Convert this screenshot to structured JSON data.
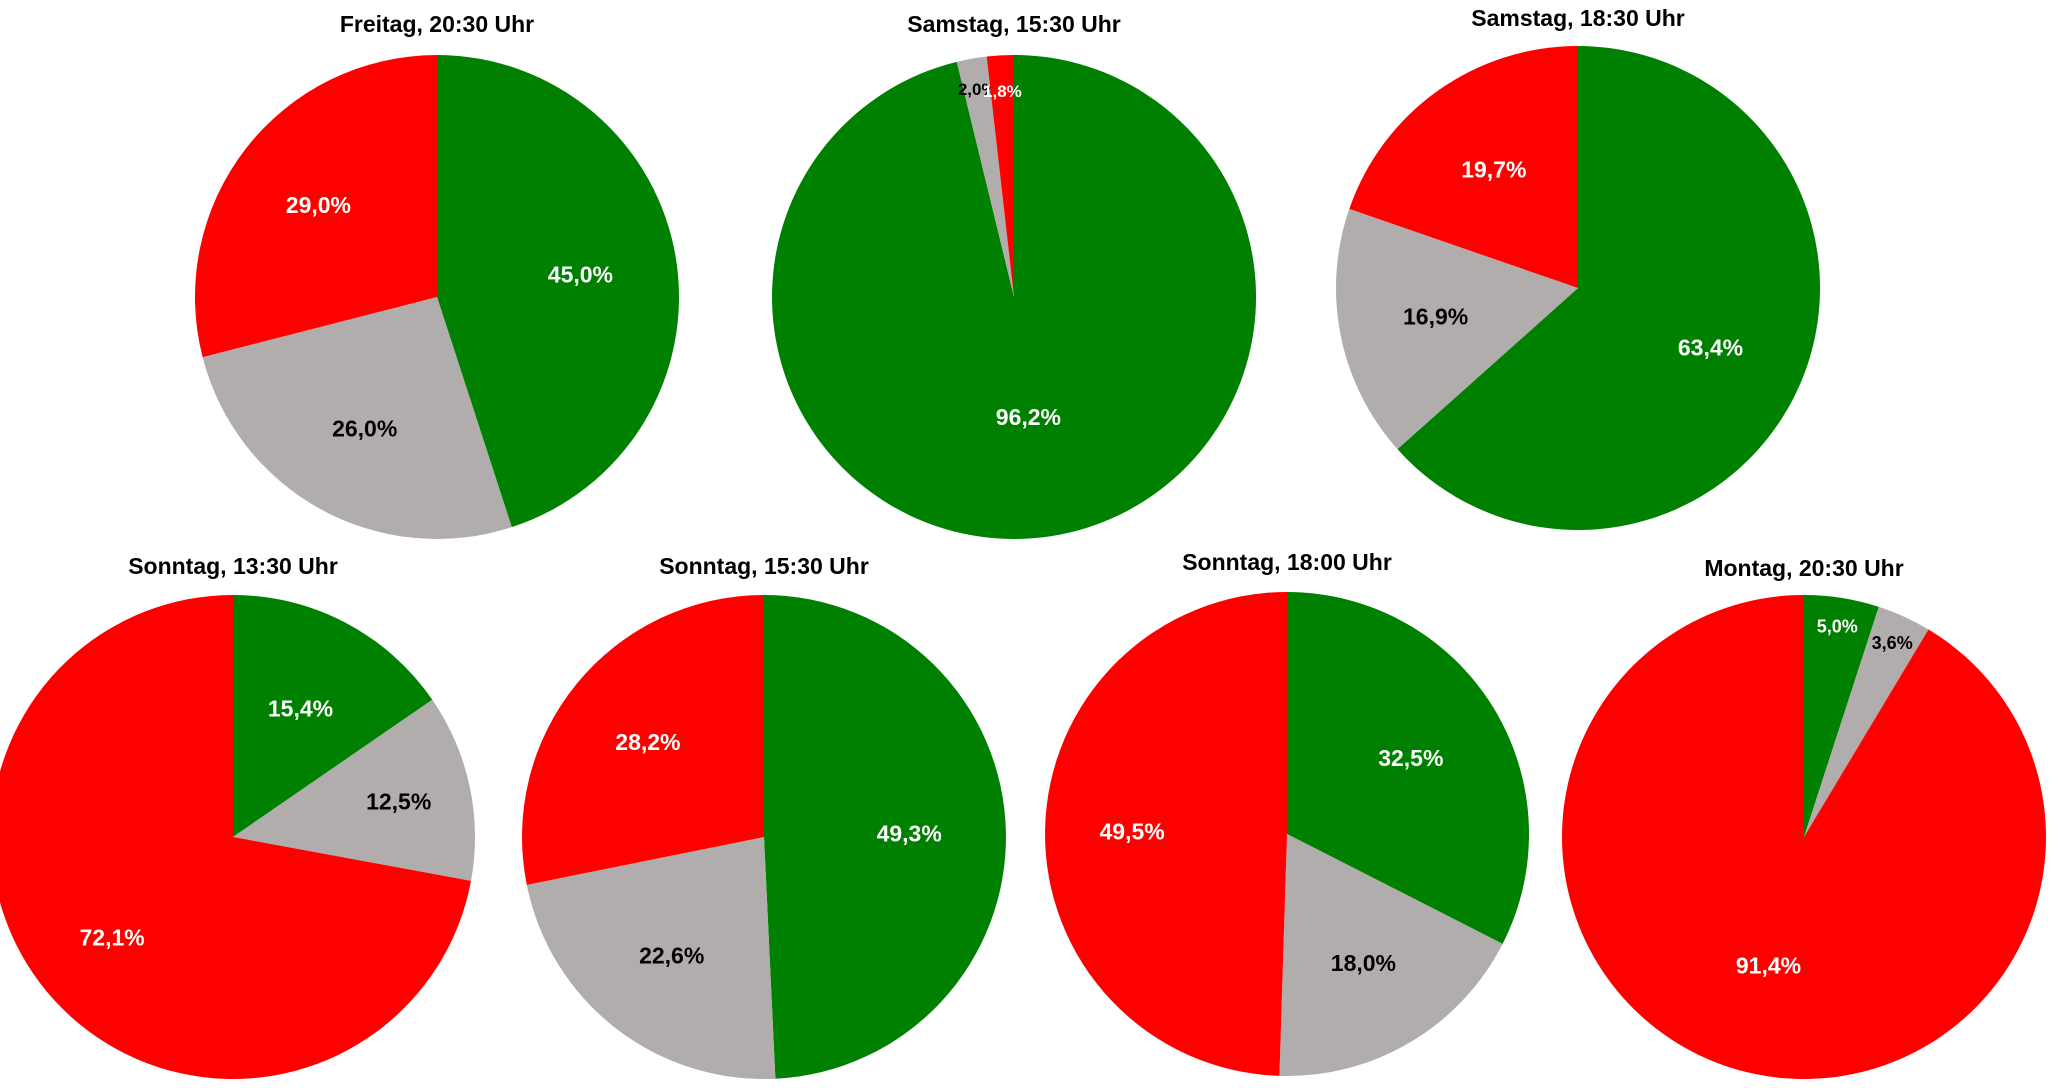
{
  "colors": {
    "green": "#008000",
    "grey": "#B1ADAC",
    "red": "#FF0000",
    "label_on_dark": "#FFFFFF",
    "label_on_grey": "#000000"
  },
  "chart_data": [
    {
      "type": "pie",
      "title": "Freitag, 20:30 Uhr",
      "slices": [
        {
          "value": 45.0,
          "color": "green",
          "label": "45,0%"
        },
        {
          "value": 26.0,
          "color": "grey",
          "label": "26,0%"
        },
        {
          "value": 29.0,
          "color": "red",
          "label": "29,0%"
        }
      ]
    },
    {
      "type": "pie",
      "title": "Samstag, 15:30 Uhr",
      "slices": [
        {
          "value": 96.2,
          "color": "green",
          "label": "96,2%"
        },
        {
          "value": 2.0,
          "color": "grey",
          "label": "2,0%"
        },
        {
          "value": 1.8,
          "color": "red",
          "label": "1,8%"
        }
      ]
    },
    {
      "type": "pie",
      "title": "Samstag, 18:30 Uhr",
      "slices": [
        {
          "value": 63.4,
          "color": "green",
          "label": "63,4%"
        },
        {
          "value": 16.9,
          "color": "grey",
          "label": "16,9%"
        },
        {
          "value": 19.7,
          "color": "red",
          "label": "19,7%"
        }
      ]
    },
    {
      "type": "pie",
      "title": "Sonntag, 13:30 Uhr",
      "slices": [
        {
          "value": 15.4,
          "color": "green",
          "label": "15,4%"
        },
        {
          "value": 12.5,
          "color": "grey",
          "label": "12,5%"
        },
        {
          "value": 72.1,
          "color": "red",
          "label": "72,1%"
        }
      ]
    },
    {
      "type": "pie",
      "title": "Sonntag, 15:30 Uhr",
      "slices": [
        {
          "value": 49.3,
          "color": "green",
          "label": "49,3%"
        },
        {
          "value": 22.6,
          "color": "grey",
          "label": "22,6%"
        },
        {
          "value": 28.2,
          "color": "red",
          "label": "28,2%"
        }
      ]
    },
    {
      "type": "pie",
      "title": "Sonntag, 18:00 Uhr",
      "slices": [
        {
          "value": 32.5,
          "color": "green",
          "label": "32,5%"
        },
        {
          "value": 18.0,
          "color": "grey",
          "label": "18,0%"
        },
        {
          "value": 49.5,
          "color": "red",
          "label": "49,5%"
        }
      ]
    },
    {
      "type": "pie",
      "title": "Montag, 20:30 Uhr",
      "slices": [
        {
          "value": 5.0,
          "color": "green",
          "label": "5,0%"
        },
        {
          "value": 3.6,
          "color": "grey",
          "label": "3,6%"
        },
        {
          "value": 91.4,
          "color": "red",
          "label": "91,4%"
        }
      ]
    }
  ]
}
